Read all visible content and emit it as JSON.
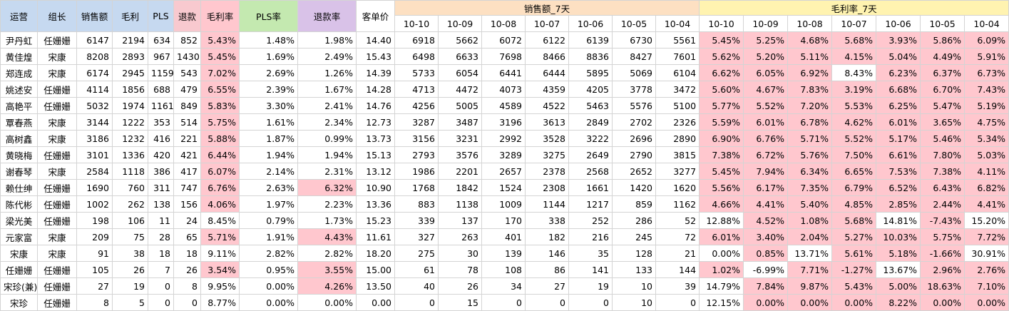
{
  "headers": {
    "ops": "运营",
    "group": "组长",
    "sales": "销售额",
    "gross": "毛利",
    "pls": "PLS",
    "refund": "退款",
    "gross_rate": "毛利率",
    "pls_rate": "PLS率",
    "refund_rate": "退款率",
    "unit_price": "客单价",
    "sales7": "销售额_7天",
    "gpr7": "毛利率_7天"
  },
  "dates": [
    "10-10",
    "10-09",
    "10-08",
    "10-07",
    "10-06",
    "10-05",
    "10-04"
  ],
  "colors": {
    "pink": "#ffc7ce",
    "blue_header": "#c6d9f0",
    "green_header": "#c4e9b0",
    "purple_header": "#d9c2e8",
    "orange_header": "#fde0c2",
    "yellow_header": "#fff3b0"
  },
  "rows": [
    {
      "ops": "尹丹虹",
      "group": "任姗姗",
      "sales": "6147",
      "gross": "2194",
      "pls": "634",
      "refund": "852",
      "gross_rate": "5.43%",
      "pls_rate": "1.48%",
      "refund_rate": "1.98%",
      "unit_price": "14.40",
      "sales7": [
        "6918",
        "5662",
        "6072",
        "6122",
        "6139",
        "6730",
        "5561"
      ],
      "gpr7": [
        "5.45%",
        "5.25%",
        "4.68%",
        "5.68%",
        "3.93%",
        "5.86%",
        "6.09%"
      ]
    },
    {
      "ops": "黄佳煌",
      "group": "宋康",
      "sales": "8208",
      "gross": "2893",
      "pls": "967",
      "refund": "1430",
      "gross_rate": "5.45%",
      "pls_rate": "1.69%",
      "refund_rate": "2.49%",
      "unit_price": "15.43",
      "sales7": [
        "6498",
        "6633",
        "7698",
        "8466",
        "8836",
        "8427",
        "7601"
      ],
      "gpr7": [
        "5.62%",
        "5.20%",
        "5.11%",
        "4.15%",
        "5.04%",
        "4.49%",
        "5.91%"
      ]
    },
    {
      "ops": "郑连成",
      "group": "宋康",
      "sales": "6174",
      "gross": "2945",
      "pls": "1159",
      "refund": "543",
      "gross_rate": "7.02%",
      "pls_rate": "2.69%",
      "refund_rate": "1.26%",
      "unit_price": "14.39",
      "sales7": [
        "5733",
        "6054",
        "6441",
        "6444",
        "5895",
        "5069",
        "6104"
      ],
      "gpr7": [
        "6.62%",
        "6.05%",
        "6.92%",
        "8.43%",
        "6.23%",
        "6.37%",
        "6.73%"
      ]
    },
    {
      "ops": "姚述安",
      "group": "任姗姗",
      "sales": "4114",
      "gross": "1856",
      "pls": "688",
      "refund": "479",
      "gross_rate": "6.55%",
      "pls_rate": "2.39%",
      "refund_rate": "1.67%",
      "unit_price": "14.28",
      "sales7": [
        "4713",
        "4472",
        "4073",
        "4359",
        "4205",
        "3778",
        "3472"
      ],
      "gpr7": [
        "5.60%",
        "4.67%",
        "7.83%",
        "3.19%",
        "6.68%",
        "6.70%",
        "7.43%"
      ]
    },
    {
      "ops": "高艳平",
      "group": "任姗姗",
      "sales": "5032",
      "gross": "1974",
      "pls": "1161",
      "refund": "849",
      "gross_rate": "5.83%",
      "pls_rate": "3.30%",
      "refund_rate": "2.41%",
      "unit_price": "14.76",
      "sales7": [
        "4256",
        "5005",
        "4589",
        "4522",
        "5463",
        "5576",
        "5100"
      ],
      "gpr7": [
        "5.77%",
        "5.52%",
        "7.20%",
        "5.53%",
        "6.25%",
        "5.47%",
        "5.19%"
      ]
    },
    {
      "ops": "覃春燕",
      "group": "宋康",
      "sales": "3144",
      "gross": "1222",
      "pls": "353",
      "refund": "514",
      "gross_rate": "5.75%",
      "pls_rate": "1.61%",
      "refund_rate": "2.34%",
      "unit_price": "12.73",
      "sales7": [
        "3287",
        "3487",
        "3196",
        "3613",
        "2849",
        "2702",
        "2326"
      ],
      "gpr7": [
        "5.59%",
        "6.01%",
        "6.78%",
        "4.62%",
        "6.01%",
        "3.65%",
        "4.75%"
      ]
    },
    {
      "ops": "高树鑫",
      "group": "宋康",
      "sales": "3186",
      "gross": "1232",
      "pls": "416",
      "refund": "221",
      "gross_rate": "5.88%",
      "pls_rate": "1.87%",
      "refund_rate": "0.99%",
      "unit_price": "13.73",
      "sales7": [
        "3156",
        "3231",
        "2992",
        "3528",
        "3222",
        "2696",
        "2890"
      ],
      "gpr7": [
        "6.90%",
        "6.76%",
        "5.71%",
        "5.52%",
        "5.17%",
        "5.46%",
        "5.34%"
      ]
    },
    {
      "ops": "黄晓梅",
      "group": "任姗姗",
      "sales": "3101",
      "gross": "1336",
      "pls": "420",
      "refund": "421",
      "gross_rate": "6.44%",
      "pls_rate": "1.94%",
      "refund_rate": "1.94%",
      "unit_price": "15.13",
      "sales7": [
        "2793",
        "3576",
        "3289",
        "3275",
        "2649",
        "2790",
        "3815"
      ],
      "gpr7": [
        "7.38%",
        "6.72%",
        "5.76%",
        "7.50%",
        "6.61%",
        "7.80%",
        "5.03%"
      ]
    },
    {
      "ops": "谢春琴",
      "group": "宋康",
      "sales": "2584",
      "gross": "1118",
      "pls": "386",
      "refund": "417",
      "gross_rate": "6.07%",
      "pls_rate": "2.14%",
      "refund_rate": "2.31%",
      "unit_price": "13.12",
      "sales7": [
        "1986",
        "2201",
        "2657",
        "2378",
        "2568",
        "2652",
        "3277"
      ],
      "gpr7": [
        "5.45%",
        "7.94%",
        "6.34%",
        "6.65%",
        "7.53%",
        "7.38%",
        "4.11%"
      ]
    },
    {
      "ops": "赖仕绅",
      "group": "任姗姗",
      "sales": "1690",
      "gross": "760",
      "pls": "311",
      "refund": "747",
      "gross_rate": "6.76%",
      "pls_rate": "2.63%",
      "refund_rate": "6.32%",
      "unit_price": "10.90",
      "sales7": [
        "1768",
        "1842",
        "1524",
        "2308",
        "1661",
        "1420",
        "1620"
      ],
      "gpr7": [
        "5.56%",
        "6.17%",
        "7.35%",
        "6.79%",
        "6.52%",
        "6.43%",
        "6.82%"
      ]
    },
    {
      "ops": "陈代彬",
      "group": "任姗姗",
      "sales": "1002",
      "gross": "262",
      "pls": "138",
      "refund": "156",
      "gross_rate": "4.06%",
      "pls_rate": "1.97%",
      "refund_rate": "2.23%",
      "unit_price": "13.36",
      "sales7": [
        "883",
        "1138",
        "1009",
        "1144",
        "1217",
        "859",
        "1162"
      ],
      "gpr7": [
        "4.66%",
        "4.41%",
        "5.40%",
        "4.85%",
        "2.85%",
        "2.44%",
        "4.41%"
      ]
    },
    {
      "ops": "梁光美",
      "group": "任姗姗",
      "sales": "198",
      "gross": "106",
      "pls": "11",
      "refund": "24",
      "gross_rate": "8.45%",
      "pls_rate": "0.79%",
      "refund_rate": "1.73%",
      "unit_price": "15.23",
      "sales7": [
        "339",
        "137",
        "170",
        "338",
        "252",
        "286",
        "52"
      ],
      "gpr7": [
        "12.88%",
        "4.52%",
        "1.08%",
        "5.68%",
        "14.81%",
        "-7.43%",
        "15.20%"
      ]
    },
    {
      "ops": "元家富",
      "group": "宋康",
      "sales": "209",
      "gross": "75",
      "pls": "28",
      "refund": "65",
      "gross_rate": "5.71%",
      "pls_rate": "1.91%",
      "refund_rate": "4.43%",
      "unit_price": "11.61",
      "sales7": [
        "327",
        "263",
        "401",
        "182",
        "216",
        "245",
        "72"
      ],
      "gpr7": [
        "6.01%",
        "3.40%",
        "2.04%",
        "5.27%",
        "10.03%",
        "5.75%",
        "7.72%"
      ]
    },
    {
      "ops": "宋康",
      "group": "宋康",
      "sales": "91",
      "gross": "38",
      "pls": "18",
      "refund": "18",
      "gross_rate": "9.11%",
      "pls_rate": "2.82%",
      "refund_rate": "2.82%",
      "unit_price": "18.20",
      "sales7": [
        "275",
        "30",
        "139",
        "146",
        "35",
        "128",
        "21"
      ],
      "gpr7": [
        "0.00%",
        "0.85%",
        "13.71%",
        "5.61%",
        "5.18%",
        "-1.66%",
        "30.91%"
      ]
    },
    {
      "ops": "任姗姗",
      "group": "任姗姗",
      "sales": "105",
      "gross": "26",
      "pls": "7",
      "refund": "26",
      "gross_rate": "3.54%",
      "pls_rate": "0.95%",
      "refund_rate": "3.55%",
      "unit_price": "15.00",
      "sales7": [
        "61",
        "78",
        "108",
        "86",
        "141",
        "133",
        "144"
      ],
      "gpr7": [
        "1.02%",
        "-6.99%",
        "7.71%",
        "-1.27%",
        "13.67%",
        "2.96%",
        "2.76%"
      ]
    },
    {
      "ops": "宋珍(兼)",
      "group": "任姗姗",
      "sales": "27",
      "gross": "19",
      "pls": "0",
      "refund": "8",
      "gross_rate": "9.95%",
      "pls_rate": "0.00%",
      "refund_rate": "4.26%",
      "unit_price": "13.50",
      "sales7": [
        "40",
        "26",
        "34",
        "27",
        "19",
        "10",
        "39"
      ],
      "gpr7": [
        "14.79%",
        "7.84%",
        "9.87%",
        "5.43%",
        "5.00%",
        "18.63%",
        "7.10%"
      ]
    },
    {
      "ops": "宋珍",
      "group": "任姗姗",
      "sales": "8",
      "gross": "5",
      "pls": "0",
      "refund": "0",
      "gross_rate": "8.77%",
      "pls_rate": "0.00%",
      "refund_rate": "0.00%",
      "unit_price": "0.00",
      "sales7": [
        "0",
        "15",
        "0",
        "0",
        "0",
        "10",
        "0"
      ],
      "gpr7": [
        "12.15%",
        "0.00%",
        "0.00%",
        "0.00%",
        "8.22%",
        "0.00%",
        "0.00%"
      ]
    }
  ],
  "highlights": {
    "gross_rate_pink_rows": [
      0,
      1,
      2,
      3,
      4,
      5,
      6,
      7,
      8,
      9,
      10,
      12,
      14
    ],
    "refund_rate_pink_rows": [
      9,
      12,
      14,
      15
    ],
    "gpr7_white": [
      [
        2,
        3
      ],
      [
        11,
        0
      ],
      [
        11,
        4
      ],
      [
        11,
        6
      ],
      [
        13,
        0
      ],
      [
        13,
        2
      ],
      [
        13,
        6
      ],
      [
        14,
        1
      ],
      [
        14,
        4
      ],
      [
        15,
        0
      ],
      [
        16,
        0
      ]
    ]
  }
}
